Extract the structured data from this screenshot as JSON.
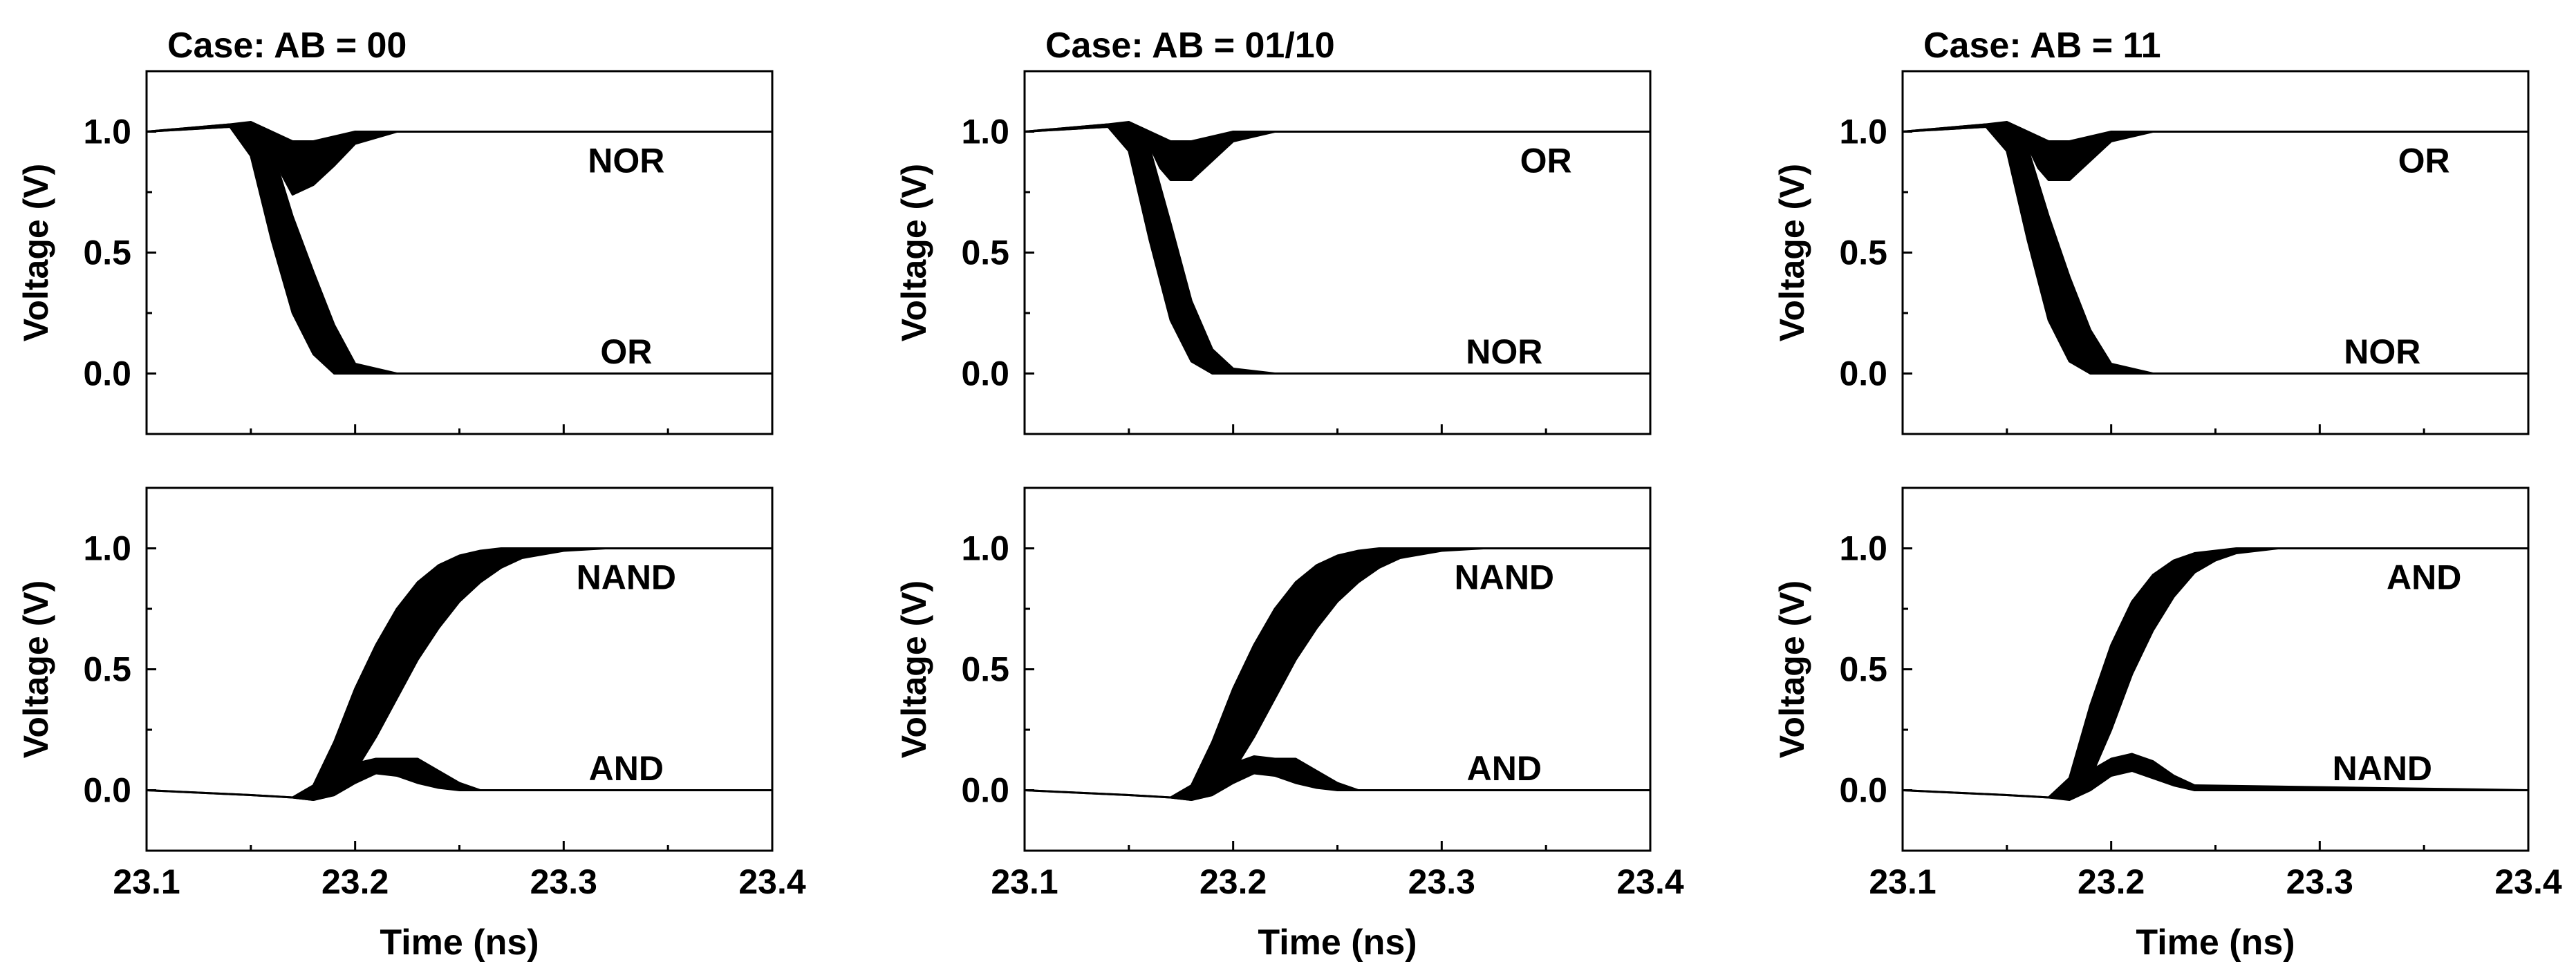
{
  "colors": {
    "background": "#ffffff",
    "ink": "#000000"
  },
  "chart_data": [
    {
      "type": "line",
      "title": "Case: AB = 00",
      "xlabel": "",
      "ylabel": "Voltage (V)",
      "xlim": [
        23.1,
        23.4
      ],
      "ylim": [
        -0.25,
        1.25
      ],
      "x_ticks": [
        "23.1",
        "23.2",
        "23.3",
        "23.4"
      ],
      "y_ticks": [
        "0.0",
        "0.5",
        "1.0"
      ],
      "show_x_tick_labels": false,
      "grid": false,
      "annotations": [
        {
          "text": "NOR",
          "x": 23.33,
          "y": 0.88
        },
        {
          "text": "OR",
          "x": 23.33,
          "y": 0.09
        }
      ],
      "series": [
        {
          "label": "NOR",
          "band": {
            "x": [
              23.1,
              23.14,
              23.15,
              23.16,
              23.165,
              23.17,
              23.18,
              23.19,
              23.2,
              23.22,
              23.4
            ],
            "upper": [
              1.0,
              1.03,
              1.04,
              1.0,
              0.98,
              0.96,
              0.96,
              0.98,
              1.0,
              1.0,
              1.0
            ],
            "lower": [
              1.0,
              1.02,
              1.02,
              0.93,
              0.82,
              0.74,
              0.78,
              0.86,
              0.95,
              1.0,
              1.0
            ]
          }
        },
        {
          "label": "OR",
          "band": {
            "x": [
              23.1,
              23.14,
              23.15,
              23.16,
              23.17,
              23.18,
              23.19,
              23.2,
              23.22,
              23.24,
              23.4
            ],
            "upper": [
              1.0,
              1.03,
              1.03,
              0.93,
              0.65,
              0.42,
              0.2,
              0.04,
              0.0,
              0.0,
              0.0
            ],
            "lower": [
              1.0,
              1.02,
              0.9,
              0.55,
              0.25,
              0.08,
              0.0,
              0.0,
              0.0,
              0.0,
              0.0
            ]
          }
        }
      ]
    },
    {
      "type": "line",
      "title": "Case: AB = 01/10",
      "xlabel": "",
      "ylabel": "Voltage (V)",
      "xlim": [
        23.1,
        23.4
      ],
      "ylim": [
        -0.25,
        1.25
      ],
      "x_ticks": [
        "23.1",
        "23.2",
        "23.3",
        "23.4"
      ],
      "y_ticks": [
        "0.0",
        "0.5",
        "1.0"
      ],
      "show_x_tick_labels": false,
      "grid": false,
      "annotations": [
        {
          "text": "OR",
          "x": 23.35,
          "y": 0.88
        },
        {
          "text": "NOR",
          "x": 23.33,
          "y": 0.09
        }
      ],
      "series": [
        {
          "label": "OR",
          "band": {
            "x": [
              23.1,
              23.14,
              23.15,
              23.16,
              23.165,
              23.17,
              23.18,
              23.19,
              23.2,
              23.22,
              23.4
            ],
            "upper": [
              1.0,
              1.03,
              1.04,
              1.0,
              0.98,
              0.96,
              0.96,
              0.98,
              1.0,
              1.0,
              1.0
            ],
            "lower": [
              1.0,
              1.02,
              1.02,
              0.94,
              0.85,
              0.8,
              0.8,
              0.88,
              0.96,
              1.0,
              1.0
            ]
          }
        },
        {
          "label": "NOR",
          "band": {
            "x": [
              23.1,
              23.14,
              23.15,
              23.16,
              23.17,
              23.18,
              23.19,
              23.2,
              23.22,
              23.24,
              23.4
            ],
            "upper": [
              1.0,
              1.03,
              1.03,
              0.93,
              0.62,
              0.3,
              0.1,
              0.02,
              0.0,
              0.0,
              0.0
            ],
            "lower": [
              1.0,
              1.02,
              0.92,
              0.55,
              0.22,
              0.05,
              0.0,
              0.0,
              0.0,
              0.0,
              0.0
            ]
          }
        }
      ]
    },
    {
      "type": "line",
      "title": "Case: AB = 11",
      "xlabel": "",
      "ylabel": "Voltage (V)",
      "xlim": [
        23.1,
        23.4
      ],
      "ylim": [
        -0.25,
        1.25
      ],
      "x_ticks": [
        "23.1",
        "23.2",
        "23.3",
        "23.4"
      ],
      "y_ticks": [
        "0.0",
        "0.5",
        "1.0"
      ],
      "show_x_tick_labels": false,
      "grid": false,
      "annotations": [
        {
          "text": "OR",
          "x": 23.35,
          "y": 0.88
        },
        {
          "text": "NOR",
          "x": 23.33,
          "y": 0.09
        }
      ],
      "series": [
        {
          "label": "OR",
          "band": {
            "x": [
              23.1,
              23.14,
              23.15,
              23.16,
              23.165,
              23.17,
              23.18,
              23.19,
              23.2,
              23.22,
              23.4
            ],
            "upper": [
              1.0,
              1.03,
              1.04,
              1.0,
              0.98,
              0.96,
              0.96,
              0.98,
              1.0,
              1.0,
              1.0
            ],
            "lower": [
              1.0,
              1.02,
              1.02,
              0.94,
              0.85,
              0.8,
              0.8,
              0.88,
              0.96,
              1.0,
              1.0
            ]
          }
        },
        {
          "label": "NOR",
          "band": {
            "x": [
              23.1,
              23.14,
              23.15,
              23.16,
              23.17,
              23.18,
              23.19,
              23.2,
              23.22,
              23.24,
              23.4
            ],
            "upper": [
              1.0,
              1.03,
              1.03,
              0.93,
              0.65,
              0.4,
              0.18,
              0.04,
              0.0,
              0.0,
              0.0
            ],
            "lower": [
              1.0,
              1.02,
              0.92,
              0.55,
              0.22,
              0.05,
              0.0,
              0.0,
              0.0,
              0.0,
              0.0
            ]
          }
        }
      ]
    },
    {
      "type": "line",
      "title": "",
      "xlabel": "Time (ns)",
      "ylabel": "Voltage (V)",
      "xlim": [
        23.1,
        23.4
      ],
      "ylim": [
        -0.25,
        1.25
      ],
      "x_ticks": [
        "23.1",
        "23.2",
        "23.3",
        "23.4"
      ],
      "y_ticks": [
        "0.0",
        "0.5",
        "1.0"
      ],
      "show_x_tick_labels": true,
      "grid": false,
      "annotations": [
        {
          "text": "NAND",
          "x": 23.33,
          "y": 0.88
        },
        {
          "text": "AND",
          "x": 23.33,
          "y": 0.09
        }
      ],
      "series": [
        {
          "label": "NAND",
          "band": {
            "x": [
              23.1,
              23.15,
              23.17,
              23.18,
              23.19,
              23.2,
              23.21,
              23.22,
              23.23,
              23.24,
              23.25,
              23.26,
              23.27,
              23.28,
              23.3,
              23.32,
              23.4
            ],
            "upper": [
              0.0,
              -0.02,
              -0.03,
              0.02,
              0.2,
              0.42,
              0.6,
              0.75,
              0.86,
              0.93,
              0.97,
              0.99,
              1.0,
              1.0,
              1.0,
              1.0,
              1.0
            ],
            "lower": [
              0.0,
              -0.02,
              -0.03,
              -0.04,
              -0.02,
              0.08,
              0.22,
              0.38,
              0.54,
              0.67,
              0.78,
              0.86,
              0.92,
              0.96,
              0.99,
              1.0,
              1.0
            ]
          }
        },
        {
          "label": "AND",
          "band": {
            "x": [
              23.1,
              23.15,
              23.17,
              23.18,
              23.19,
              23.2,
              23.21,
              23.22,
              23.23,
              23.24,
              23.25,
              23.26,
              23.4
            ],
            "upper": [
              0.0,
              -0.02,
              -0.03,
              0.0,
              0.04,
              0.11,
              0.13,
              0.13,
              0.13,
              0.08,
              0.03,
              0.0,
              0.0
            ],
            "lower": [
              0.0,
              -0.02,
              -0.03,
              -0.04,
              -0.02,
              0.03,
              0.07,
              0.06,
              0.03,
              0.01,
              0.0,
              0.0,
              0.0
            ]
          }
        }
      ]
    },
    {
      "type": "line",
      "title": "",
      "xlabel": "Time (ns)",
      "ylabel": "Voltage (V)",
      "xlim": [
        23.1,
        23.4
      ],
      "ylim": [
        -0.25,
        1.25
      ],
      "x_ticks": [
        "23.1",
        "23.2",
        "23.3",
        "23.4"
      ],
      "y_ticks": [
        "0.0",
        "0.5",
        "1.0"
      ],
      "show_x_tick_labels": true,
      "grid": false,
      "annotations": [
        {
          "text": "NAND",
          "x": 23.33,
          "y": 0.88
        },
        {
          "text": "AND",
          "x": 23.33,
          "y": 0.09
        }
      ],
      "series": [
        {
          "label": "NAND",
          "band": {
            "x": [
              23.1,
              23.15,
              23.17,
              23.18,
              23.19,
              23.2,
              23.21,
              23.22,
              23.23,
              23.24,
              23.25,
              23.26,
              23.27,
              23.28,
              23.3,
              23.32,
              23.4
            ],
            "upper": [
              0.0,
              -0.02,
              -0.03,
              0.02,
              0.2,
              0.42,
              0.6,
              0.75,
              0.86,
              0.93,
              0.97,
              0.99,
              1.0,
              1.0,
              1.0,
              1.0,
              1.0
            ],
            "lower": [
              0.0,
              -0.02,
              -0.03,
              -0.04,
              -0.02,
              0.08,
              0.22,
              0.38,
              0.54,
              0.67,
              0.78,
              0.86,
              0.92,
              0.96,
              0.99,
              1.0,
              1.0
            ]
          }
        },
        {
          "label": "AND",
          "band": {
            "x": [
              23.1,
              23.15,
              23.17,
              23.18,
              23.19,
              23.2,
              23.21,
              23.22,
              23.23,
              23.24,
              23.25,
              23.26,
              23.4
            ],
            "upper": [
              0.0,
              -0.02,
              -0.03,
              0.0,
              0.04,
              0.11,
              0.14,
              0.13,
              0.13,
              0.08,
              0.03,
              0.0,
              0.0
            ],
            "lower": [
              0.0,
              -0.02,
              -0.03,
              -0.04,
              -0.02,
              0.03,
              0.07,
              0.06,
              0.03,
              0.01,
              0.0,
              0.0,
              0.0
            ]
          }
        }
      ]
    },
    {
      "type": "line",
      "title": "",
      "xlabel": "Time (ns)",
      "ylabel": "Voltage (V)",
      "xlim": [
        23.1,
        23.4
      ],
      "ylim": [
        -0.25,
        1.25
      ],
      "x_ticks": [
        "23.1",
        "23.2",
        "23.3",
        "23.4"
      ],
      "y_ticks": [
        "0.0",
        "0.5",
        "1.0"
      ],
      "show_x_tick_labels": true,
      "grid": false,
      "annotations": [
        {
          "text": "AND",
          "x": 23.35,
          "y": 0.88
        },
        {
          "text": "NAND",
          "x": 23.33,
          "y": 0.09
        }
      ],
      "series": [
        {
          "label": "AND",
          "band": {
            "x": [
              23.1,
              23.15,
              23.17,
              23.18,
              23.19,
              23.2,
              23.21,
              23.22,
              23.23,
              23.24,
              23.25,
              23.26,
              23.28,
              23.4
            ],
            "upper": [
              0.0,
              -0.02,
              -0.03,
              0.05,
              0.35,
              0.6,
              0.78,
              0.89,
              0.95,
              0.98,
              0.99,
              1.0,
              1.0,
              1.0
            ],
            "lower": [
              0.0,
              -0.02,
              -0.03,
              -0.03,
              0.05,
              0.25,
              0.48,
              0.66,
              0.8,
              0.9,
              0.95,
              0.98,
              1.0,
              1.0
            ]
          }
        },
        {
          "label": "NAND",
          "band": {
            "x": [
              23.1,
              23.15,
              23.17,
              23.18,
              23.19,
              23.2,
              23.21,
              23.22,
              23.23,
              23.24,
              23.4
            ],
            "upper": [
              0.0,
              -0.02,
              -0.03,
              0.0,
              0.08,
              0.13,
              0.15,
              0.12,
              0.06,
              0.02,
              0.0
            ],
            "lower": [
              0.0,
              -0.02,
              -0.03,
              -0.04,
              0.0,
              0.06,
              0.08,
              0.05,
              0.02,
              0.0,
              0.0
            ]
          }
        }
      ]
    }
  ]
}
